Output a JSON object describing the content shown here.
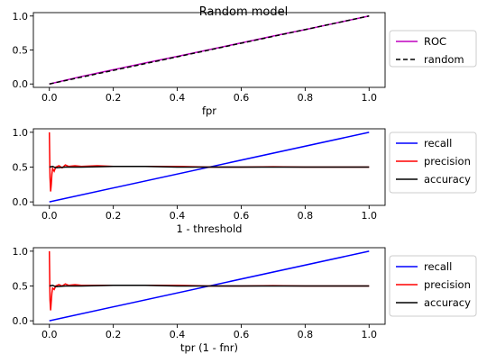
{
  "figure": {
    "title": "Random model"
  },
  "chart_data": [
    {
      "type": "line",
      "xlabel": "fpr",
      "ylabel": "",
      "xlim": [
        -0.05,
        1.05
      ],
      "ylim": [
        -0.05,
        1.05
      ],
      "xticks": [
        "0.0",
        "0.2",
        "0.4",
        "0.6",
        "0.8",
        "1.0"
      ],
      "yticks": [
        "0.0",
        "0.5",
        "1.0"
      ],
      "legend_position": "outside-right",
      "series": [
        {
          "name": "ROC",
          "color": "#bf00bf",
          "style": "solid",
          "x": [
            0,
            0.1,
            0.2,
            0.3,
            0.4,
            0.5,
            0.6,
            0.7,
            0.8,
            0.9,
            1.0
          ],
          "y": [
            0,
            0.11,
            0.21,
            0.31,
            0.405,
            0.505,
            0.605,
            0.705,
            0.8,
            0.9,
            1.0
          ]
        },
        {
          "name": "random",
          "color": "#000000",
          "style": "dashed",
          "x": [
            0,
            1
          ],
          "y": [
            0,
            1
          ]
        }
      ]
    },
    {
      "type": "line",
      "xlabel": "1 - threshold",
      "ylabel": "",
      "xlim": [
        -0.05,
        1.05
      ],
      "ylim": [
        -0.05,
        1.05
      ],
      "xticks": [
        "0.0",
        "0.2",
        "0.4",
        "0.6",
        "0.8",
        "1.0"
      ],
      "yticks": [
        "0.0",
        "0.5",
        "1.0"
      ],
      "legend_position": "outside-right",
      "series": [
        {
          "name": "recall",
          "color": "#0000ff",
          "style": "solid",
          "x": [
            0,
            1
          ],
          "y": [
            0,
            1
          ]
        },
        {
          "name": "precision",
          "color": "#ff0000",
          "style": "solid",
          "x": [
            0,
            0.002,
            0.004,
            0.006,
            0.008,
            0.01,
            0.015,
            0.02,
            0.03,
            0.04,
            0.05,
            0.06,
            0.08,
            0.1,
            0.15,
            0.2,
            0.3,
            0.4,
            0.5,
            0.6,
            0.7,
            0.8,
            0.9,
            1.0
          ],
          "y": [
            1.0,
            0.35,
            0.15,
            0.25,
            0.4,
            0.48,
            0.44,
            0.5,
            0.52,
            0.49,
            0.53,
            0.51,
            0.52,
            0.51,
            0.52,
            0.51,
            0.51,
            0.51,
            0.5,
            0.5,
            0.505,
            0.5,
            0.5,
            0.5
          ]
        },
        {
          "name": "accuracy",
          "color": "#000000",
          "style": "solid",
          "x": [
            0,
            0.01,
            0.02,
            0.05,
            0.1,
            0.2,
            0.3,
            0.4,
            0.5,
            0.6,
            0.7,
            0.8,
            0.9,
            1.0
          ],
          "y": [
            0.5,
            0.51,
            0.49,
            0.5,
            0.5,
            0.51,
            0.51,
            0.5,
            0.5,
            0.5,
            0.5,
            0.5,
            0.5,
            0.5
          ]
        }
      ]
    },
    {
      "type": "line",
      "xlabel": "tpr (1 - fnr)",
      "ylabel": "",
      "xlim": [
        -0.05,
        1.05
      ],
      "ylim": [
        -0.05,
        1.05
      ],
      "xticks": [
        "0.0",
        "0.2",
        "0.4",
        "0.6",
        "0.8",
        "1.0"
      ],
      "yticks": [
        "0.0",
        "0.5",
        "1.0"
      ],
      "legend_position": "outside-right",
      "series": [
        {
          "name": "recall",
          "color": "#0000ff",
          "style": "solid",
          "x": [
            0,
            1
          ],
          "y": [
            0,
            1
          ]
        },
        {
          "name": "precision",
          "color": "#ff0000",
          "style": "solid",
          "x": [
            0,
            0.002,
            0.004,
            0.006,
            0.008,
            0.01,
            0.015,
            0.02,
            0.03,
            0.04,
            0.05,
            0.06,
            0.08,
            0.1,
            0.15,
            0.2,
            0.3,
            0.4,
            0.5,
            0.6,
            0.7,
            0.8,
            0.9,
            1.0
          ],
          "y": [
            1.0,
            0.3,
            0.15,
            0.28,
            0.4,
            0.47,
            0.45,
            0.5,
            0.52,
            0.5,
            0.53,
            0.51,
            0.52,
            0.51,
            0.51,
            0.51,
            0.51,
            0.51,
            0.5,
            0.5,
            0.505,
            0.5,
            0.5,
            0.5
          ]
        },
        {
          "name": "accuracy",
          "color": "#000000",
          "style": "solid",
          "x": [
            0,
            0.01,
            0.02,
            0.05,
            0.1,
            0.2,
            0.3,
            0.4,
            0.5,
            0.6,
            0.7,
            0.8,
            0.9,
            1.0
          ],
          "y": [
            0.5,
            0.51,
            0.49,
            0.5,
            0.5,
            0.51,
            0.51,
            0.5,
            0.5,
            0.5,
            0.5,
            0.5,
            0.5,
            0.5
          ]
        }
      ]
    }
  ]
}
